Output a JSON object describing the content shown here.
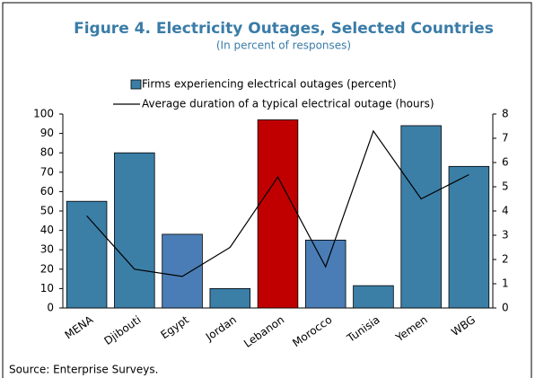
{
  "chart_data": {
    "type": "bar_line",
    "title": "Figure 4. Electricity Outages, Selected Countries",
    "subtitle": "(In percent of responses)",
    "categories": [
      "MENA",
      "Djibouti",
      "Egypt",
      "Jordan",
      "Lebanon",
      "Morocco",
      "Tunisia",
      "Yemen",
      "WBG"
    ],
    "series": [
      {
        "name": "Firms experiencing electrical outages (percent)",
        "kind": "bar",
        "color": "#3b7fa7",
        "colors": [
          "#3b7fa7",
          "#3b7fa7",
          "#4a7db5",
          "#3b7fa7",
          "#c00000",
          "#4a7db5",
          "#3b7fa7",
          "#3b7fa7",
          "#3b7fa7"
        ],
        "values": [
          55,
          80,
          38,
          10,
          97,
          35,
          11.5,
          94,
          73
        ]
      },
      {
        "name": "Average duration of a typical electrical outage (hours)",
        "kind": "line",
        "axis": "y2",
        "color": "#000000",
        "values": [
          3.8,
          1.6,
          1.3,
          2.5,
          5.4,
          1.7,
          7.3,
          4.5,
          5.5
        ]
      }
    ],
    "ylim": [
      0,
      100
    ],
    "yticks": [
      0,
      10,
      20,
      30,
      40,
      50,
      60,
      70,
      80,
      90,
      100
    ],
    "y2lim": [
      0,
      8
    ],
    "y2ticks": [
      0,
      1,
      2,
      3,
      4,
      5,
      6,
      7,
      8
    ],
    "source": "Source: Enterprise Surveys."
  }
}
